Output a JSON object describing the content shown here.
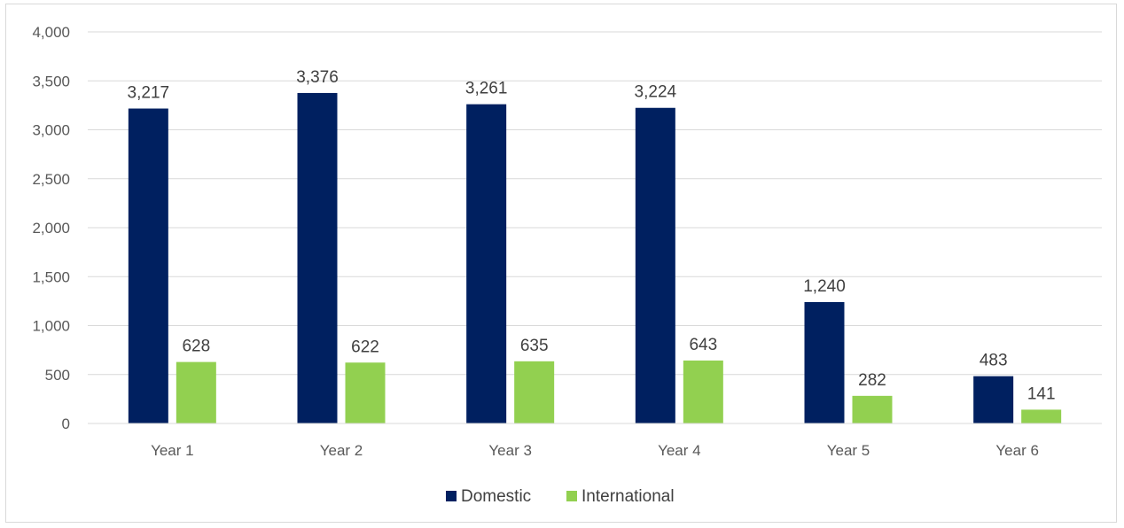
{
  "chart_data": {
    "type": "bar",
    "title": "",
    "xlabel": "",
    "ylabel": "",
    "categories": [
      "Year 1",
      "Year 2",
      "Year 3",
      "Year 4",
      "Year 5",
      "Year 6"
    ],
    "series": [
      {
        "name": "Domestic",
        "color": "#002060",
        "values": [
          3217,
          3376,
          3261,
          3224,
          1240,
          483
        ],
        "labels": [
          "3,217",
          "3,376",
          "3,261",
          "3,224",
          "1,240",
          "483"
        ]
      },
      {
        "name": "International",
        "color": "#92d050",
        "values": [
          628,
          622,
          635,
          643,
          282,
          141
        ],
        "labels": [
          "628",
          "622",
          "635",
          "643",
          "282",
          "141"
        ]
      }
    ],
    "ylim": [
      0,
      4000
    ],
    "yticks": [
      0,
      500,
      1000,
      1500,
      2000,
      2500,
      3000,
      3500,
      4000
    ],
    "ytick_labels": [
      "0",
      "500",
      "1,000",
      "1,500",
      "2,000",
      "2,500",
      "3,000",
      "3,500",
      "4,000"
    ],
    "grid": true,
    "gridline_color": "#d9d9d9",
    "legend_position": "bottom"
  }
}
